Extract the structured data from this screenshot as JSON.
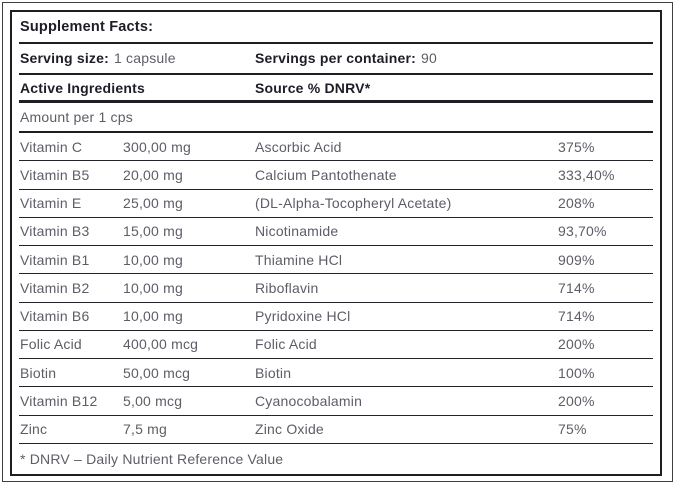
{
  "label": {
    "title": "Supplement Facts:",
    "serving": {
      "size_label": "Serving size:",
      "size_value": "1 capsule",
      "per_container_label": "Servings per container:",
      "per_container_value": "90"
    },
    "columns": {
      "ingredients": "Active Ingredients",
      "source": "Source % DNRV*"
    },
    "amount_header": "Amount per 1 cps",
    "rows": [
      {
        "name": "Vitamin C",
        "amount": "300,00 mg",
        "source": "Ascorbic Acid",
        "dnrv": "375%"
      },
      {
        "name": "Vitamin B5",
        "amount": "20,00 mg",
        "source": "Calcium Pantothenate",
        "dnrv": "333,40%"
      },
      {
        "name": "Vitamin E",
        "amount": "25,00 mg",
        "source": "(DL-Alpha-Tocopheryl Acetate)",
        "dnrv": "208%"
      },
      {
        "name": "Vitamin B3",
        "amount": "15,00 mg",
        "source": "Nicotinamide",
        "dnrv": "93,70%"
      },
      {
        "name": "Vitamin B1",
        "amount": "10,00 mg",
        "source": "Thiamine HCl",
        "dnrv": "909%"
      },
      {
        "name": "Vitamin B2",
        "amount": "10,00 mg",
        "source": "Riboflavin",
        "dnrv": "714%"
      },
      {
        "name": "Vitamin B6",
        "amount": "10,00 mg",
        "source": "Pyridoxine HCl",
        "dnrv": "714%"
      },
      {
        "name": "Folic Acid",
        "amount": "400,00 mcg",
        "source": "Folic Acid",
        "dnrv": "200%"
      },
      {
        "name": "Biotin",
        "amount": "50,00 mcg",
        "source": "Biotin",
        "dnrv": "100%"
      },
      {
        "name": "Vitamin B12",
        "amount": "5,00 mcg",
        "source": "Cyanocobalamin",
        "dnrv": "200%"
      },
      {
        "name": "Zinc",
        "amount": "7,5 mg",
        "source": "Zinc Oxide",
        "dnrv": "75%"
      }
    ],
    "footnote": "* DNRV – Daily Nutrient Reference Value"
  },
  "colors": {
    "text_dark": "#1d1d27",
    "text_gray": "#5d5d66",
    "rule_line": "#1e1e24",
    "outer_border": "#3f3f3f"
  }
}
